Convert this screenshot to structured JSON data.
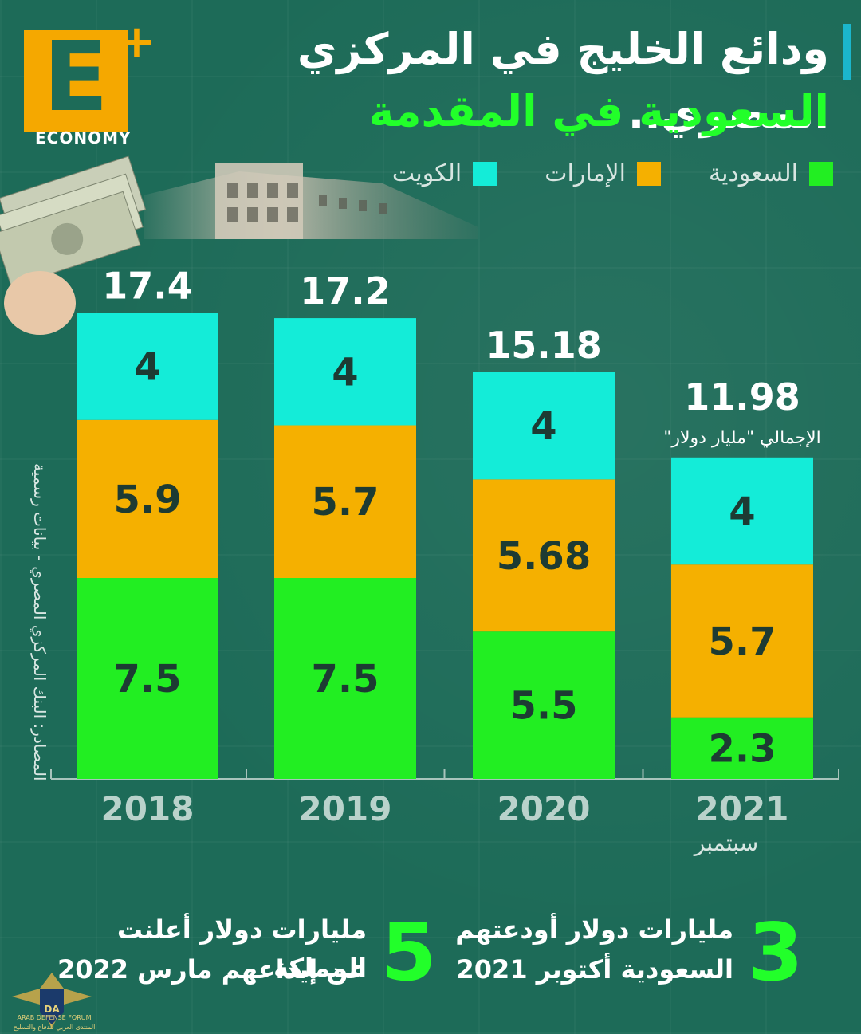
{
  "header": {
    "title_line1": "ودائع الخليج في المركزي المصري..",
    "title_line2": "السعودية في المقدمة"
  },
  "logo": {
    "letter": "E",
    "plus": "+",
    "text": "ECONOMY"
  },
  "legend": [
    {
      "label": "السعودية",
      "color": "#22ee22"
    },
    {
      "label": "الإمارات",
      "color": "#f5b000"
    },
    {
      "label": "الكويت",
      "color": "#14ecd8"
    }
  ],
  "source_note": "المصادر: البنك المركزي المصري - بيانات رسمية",
  "chart_data": {
    "type": "bar",
    "stacked": true,
    "categories": [
      "2018",
      "2019",
      "2020",
      "2021"
    ],
    "category_sublabels": [
      "",
      "",
      "",
      "سبتمبر"
    ],
    "series": [
      {
        "name": "السعودية",
        "values": [
          7.5,
          7.5,
          5.5,
          2.3
        ],
        "color": "#22ee22"
      },
      {
        "name": "الإمارات",
        "values": [
          5.9,
          5.7,
          5.68,
          5.7
        ],
        "color": "#f5b000"
      },
      {
        "name": "الكويت",
        "values": [
          4,
          4,
          4,
          4
        ],
        "color": "#14ecd8"
      }
    ],
    "totals": [
      "17.4",
      "17.2",
      "15.18",
      "11.98"
    ],
    "total_note": "الإجمالي \"مليار دولار\"",
    "grid": false
  },
  "footer": {
    "item_left": {
      "number": "5",
      "text_line1": "مليارات دولار أعلنت المملكة",
      "text_line2": "عن إيداعهم مارس 2022"
    },
    "item_right": {
      "number": "3",
      "text_line1": "مليارات دولار أودعتهم",
      "text_line2": "السعودية أكتوبر 2021"
    }
  },
  "forum": {
    "name": "ARAB DEFENSE FORUM",
    "name_ar": "المنتدى العربي للدفاع والتسليح"
  }
}
